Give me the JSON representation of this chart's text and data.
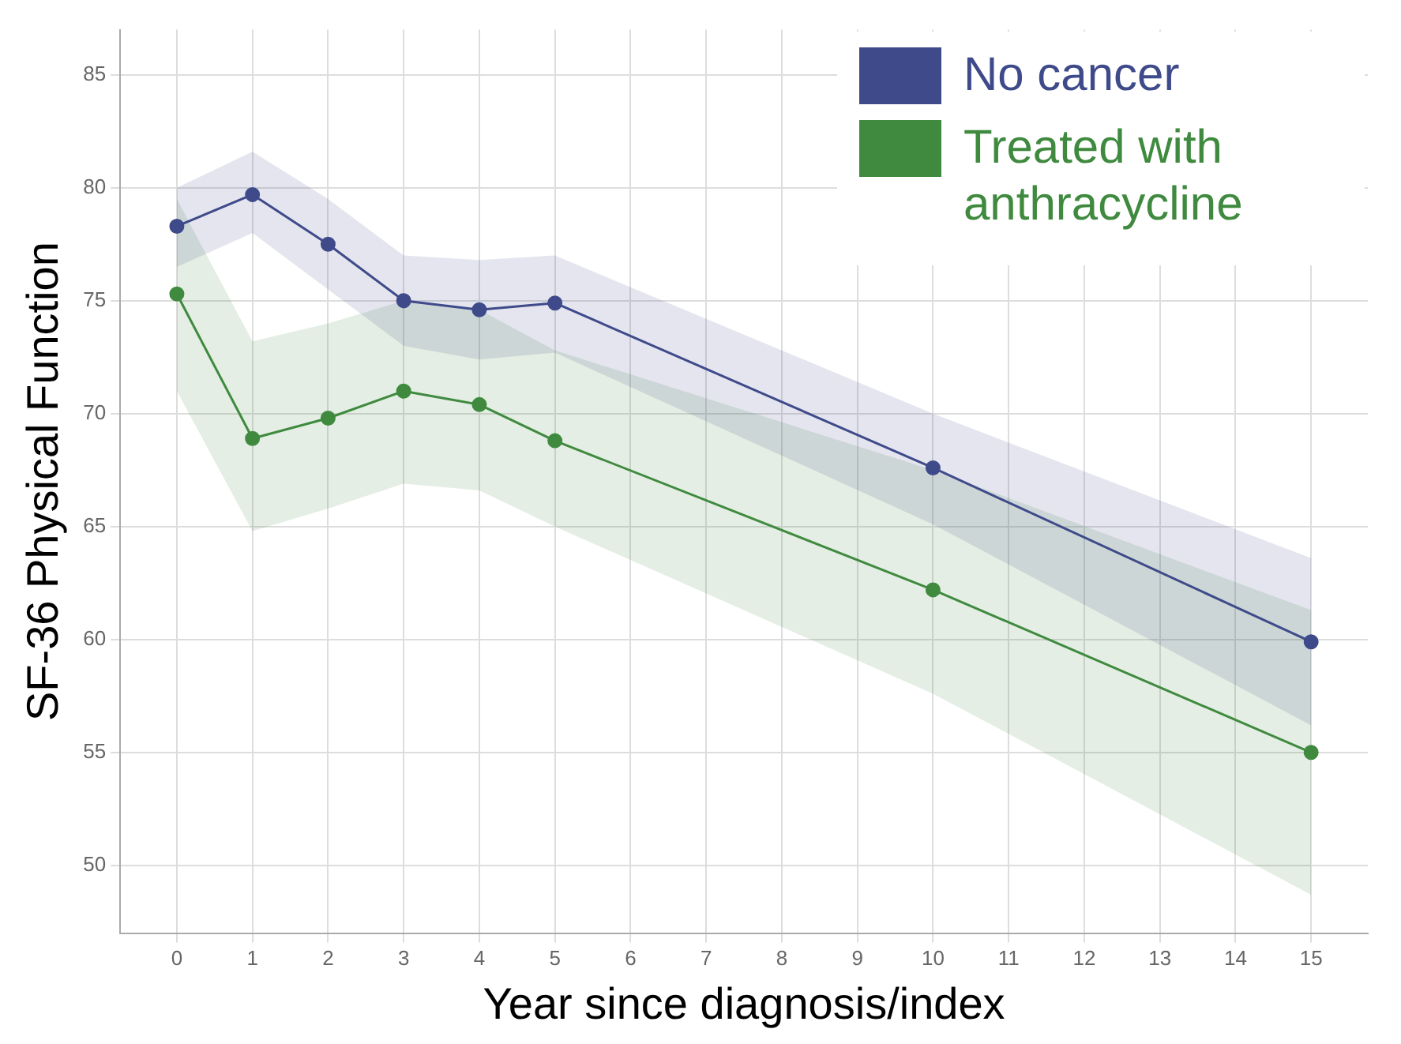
{
  "chart_data": {
    "type": "line",
    "xlabel": "Year since diagnosis/index",
    "ylabel": "SF-36 Physical Function",
    "x": [
      0,
      1,
      2,
      3,
      4,
      5,
      10,
      15
    ],
    "series": [
      {
        "name": "No cancer",
        "color": "#3f4a8a",
        "values": [
          78.3,
          79.7,
          77.5,
          75.0,
          74.6,
          74.9,
          67.6,
          59.9
        ],
        "lower": [
          76.5,
          78.0,
          75.5,
          73.0,
          72.4,
          72.7,
          65.1,
          56.2
        ],
        "upper": [
          80.0,
          81.6,
          79.5,
          77.0,
          76.8,
          77.0,
          70.0,
          63.6
        ]
      },
      {
        "name": "Treated with anthracycline",
        "color": "#3f8a3f",
        "values": [
          75.3,
          68.9,
          69.8,
          71.0,
          70.4,
          68.8,
          62.2,
          55.0
        ],
        "lower": [
          71.0,
          64.8,
          65.8,
          66.9,
          66.6,
          65.0,
          57.6,
          48.7
        ],
        "upper": [
          79.5,
          73.2,
          74.0,
          75.0,
          74.6,
          72.8,
          67.5,
          61.3
        ]
      }
    ],
    "xlim": [
      -0.75,
      15.75
    ],
    "xticks": [
      0,
      1,
      2,
      3,
      4,
      5,
      6,
      7,
      8,
      9,
      10,
      11,
      12,
      13,
      14,
      15
    ],
    "ylim": [
      47,
      87
    ],
    "yticks": [
      50,
      55,
      60,
      65,
      70,
      75,
      80,
      85
    ],
    "grid": true,
    "legend": "top right",
    "marker": "circle",
    "line_style": "solid"
  }
}
